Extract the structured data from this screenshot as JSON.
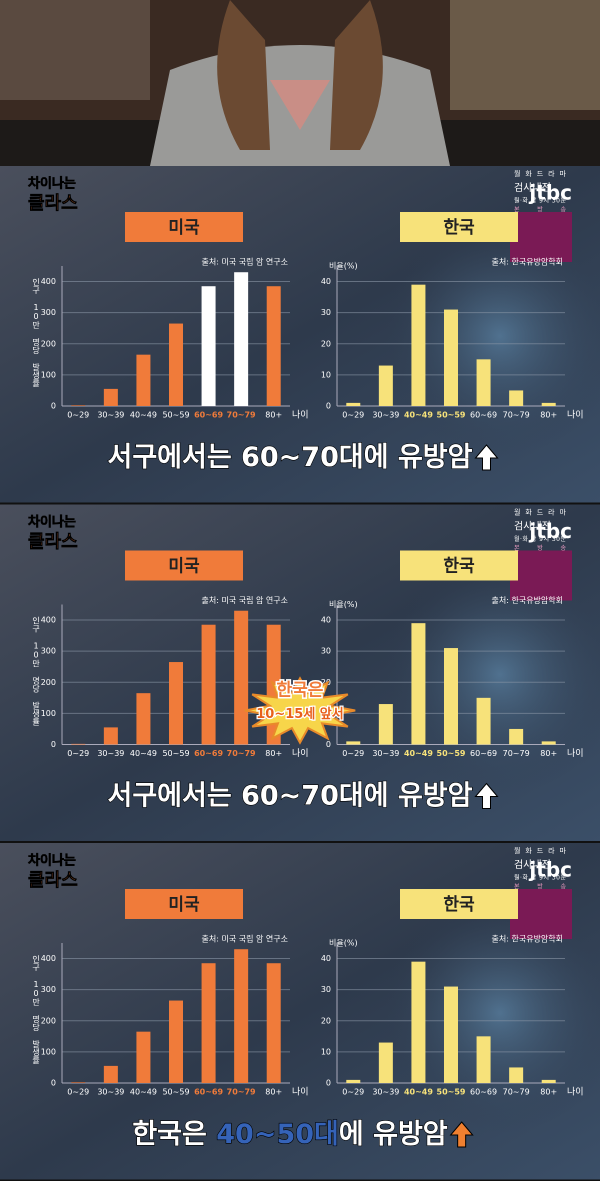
{
  "chart_data": [
    {
      "type": "bar",
      "title": "미국",
      "source": "출처: 미국 국립 암 연구소",
      "ylabel": "인구 10만 명당 발생률",
      "xlabel": "나이",
      "categories": [
        "0~29",
        "30~39",
        "40~49",
        "50~59",
        "60~69",
        "70~79",
        "80+"
      ],
      "values": [
        2,
        55,
        165,
        265,
        385,
        430,
        385
      ],
      "colors": [
        "#f07b3a",
        "#f07b3a",
        "#f07b3a",
        "#f07b3a",
        "#ffffff",
        "#ffffff",
        "#f07b3a"
      ],
      "category_colors": [
        "#ffffff",
        "#ffffff",
        "#ffffff",
        "#ffffff",
        "#f07b3a",
        "#f07b3a",
        "#ffffff"
      ],
      "title_color": "#f07b3a",
      "ylim": [
        0,
        450
      ],
      "yticks": [
        0,
        100,
        200,
        300,
        400
      ],
      "grid": true
    },
    {
      "type": "bar",
      "title": "한국",
      "source": "출처: 한국유방암학회",
      "ylabel": "비율(%)",
      "xlabel": "나이",
      "categories": [
        "0~29",
        "30~39",
        "40~49",
        "50~59",
        "60~69",
        "70~79",
        "80+"
      ],
      "values": [
        1,
        13,
        39,
        31,
        15,
        5,
        1
      ],
      "colors": [
        "#f7e27a",
        "#f7e27a",
        "#f7e27a",
        "#f7e27a",
        "#f7e27a",
        "#f7e27a",
        "#f7e27a"
      ],
      "category_colors": [
        "#ffffff",
        "#ffffff",
        "#f7e27a",
        "#f7e27a",
        "#ffffff",
        "#ffffff",
        "#ffffff"
      ],
      "title_color": "#f7e27a",
      "ylim": [
        0,
        45
      ],
      "yticks": [
        0,
        10,
        20,
        30,
        40
      ],
      "grid": true
    },
    {
      "type": "bar",
      "title": "미국",
      "source": "출처: 미국 국립 암 연구소",
      "ylabel": "인구 10만 명당 발생률",
      "xlabel": "나이",
      "categories": [
        "0~29",
        "30~39",
        "40~49",
        "50~59",
        "60~69",
        "70~79",
        "80+"
      ],
      "values": [
        2,
        55,
        165,
        265,
        385,
        430,
        385
      ],
      "colors": [
        "#f07b3a",
        "#f07b3a",
        "#f07b3a",
        "#f07b3a",
        "#f07b3a",
        "#f07b3a",
        "#f07b3a"
      ],
      "category_colors": [
        "#ffffff",
        "#ffffff",
        "#ffffff",
        "#ffffff",
        "#f07b3a",
        "#f07b3a",
        "#ffffff"
      ],
      "title_color": "#f07b3a",
      "ylim": [
        0,
        450
      ],
      "yticks": [
        0,
        100,
        200,
        300,
        400
      ],
      "grid": true
    },
    {
      "type": "bar",
      "title": "한국",
      "source": "출처: 한국유방암학회",
      "ylabel": "비율(%)",
      "xlabel": "나이",
      "categories": [
        "0~29",
        "30~39",
        "40~49",
        "50~59",
        "60~69",
        "70~79",
        "80+"
      ],
      "values": [
        1,
        13,
        39,
        31,
        15,
        5,
        1
      ],
      "colors": [
        "#f7e27a",
        "#f7e27a",
        "#f7e27a",
        "#f7e27a",
        "#f7e27a",
        "#f7e27a",
        "#f7e27a"
      ],
      "category_colors": [
        "#ffffff",
        "#ffffff",
        "#f7e27a",
        "#f7e27a",
        "#ffffff",
        "#ffffff",
        "#ffffff"
      ],
      "title_color": "#f7e27a",
      "ylim": [
        0,
        45
      ],
      "yticks": [
        0,
        10,
        20,
        30,
        40
      ],
      "grid": true
    },
    {
      "type": "bar",
      "title": "미국",
      "source": "출처: 미국 국립 암 연구소",
      "ylabel": "인구 10만 명당 발생률",
      "xlabel": "나이",
      "categories": [
        "0~29",
        "30~39",
        "40~49",
        "50~59",
        "60~69",
        "70~79",
        "80+"
      ],
      "values": [
        2,
        55,
        165,
        265,
        385,
        430,
        385
      ],
      "colors": [
        "#f07b3a",
        "#f07b3a",
        "#f07b3a",
        "#f07b3a",
        "#f07b3a",
        "#f07b3a",
        "#f07b3a"
      ],
      "category_colors": [
        "#ffffff",
        "#ffffff",
        "#ffffff",
        "#ffffff",
        "#f07b3a",
        "#f07b3a",
        "#ffffff"
      ],
      "title_color": "#f07b3a",
      "ylim": [
        0,
        450
      ],
      "yticks": [
        0,
        100,
        200,
        300,
        400
      ],
      "grid": true
    },
    {
      "type": "bar",
      "title": "한국",
      "source": "출처: 한국유방암학회",
      "ylabel": "비율(%)",
      "xlabel": "나이",
      "categories": [
        "0~29",
        "30~39",
        "40~49",
        "50~59",
        "60~69",
        "70~79",
        "80+"
      ],
      "values": [
        1,
        13,
        39,
        31,
        15,
        5,
        1
      ],
      "colors": [
        "#f7e27a",
        "#f7e27a",
        "#f7e27a",
        "#f7e27a",
        "#f7e27a",
        "#f7e27a",
        "#f7e27a"
      ],
      "category_colors": [
        "#ffffff",
        "#ffffff",
        "#f7e27a",
        "#f7e27a",
        "#ffffff",
        "#ffffff",
        "#ffffff"
      ],
      "title_color": "#f7e27a",
      "ylim": [
        0,
        45
      ],
      "yticks": [
        0,
        10,
        20,
        30,
        40
      ],
      "grid": true
    }
  ],
  "panels": [
    {
      "logo": [
        "차이나는",
        "클라스"
      ],
      "channel": "jtbc",
      "promo": [
        "월화드라마",
        "검사내전",
        "월·화 밤 9시 30분",
        "본방송"
      ],
      "caption": [
        {
          "text": "서구에서는 60~70대에 유방암",
          "color": "#ffffff"
        }
      ],
      "arrow_color": "#ffffff"
    },
    {
      "logo": [
        "차이나는",
        "클라스"
      ],
      "channel": "jtbc",
      "promo": [
        "월화드라마",
        "검사내전",
        "월·화 밤 9시 30분",
        "본방송"
      ],
      "caption": [
        {
          "text": "서구에서는 60~70대에 유방암",
          "color": "#ffffff"
        }
      ],
      "arrow_color": "#ffffff",
      "badge": [
        "한국은",
        "10~15세 앞서"
      ]
    },
    {
      "logo": [
        "차이나는",
        "클라스"
      ],
      "channel": "jtbc",
      "promo": [
        "월화드라마",
        "검사내전",
        "월·화 밤 9시 30분",
        "본방송"
      ],
      "caption": [
        {
          "text": "한국은 ",
          "color": "#ffffff"
        },
        {
          "text": "40~50대",
          "color": "#3563b8"
        },
        {
          "text": "에 유방암",
          "color": "#ffffff"
        }
      ],
      "arrow_color": "#f08030"
    }
  ]
}
